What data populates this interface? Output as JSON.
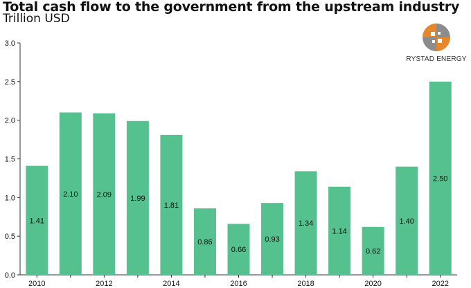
{
  "header": {
    "title": "Total cash flow to the government from the upstream industry",
    "subtitle": "Trillion USD"
  },
  "logo": {
    "text": "RYSTAD ENERGY",
    "icon": "rystad-globe-logo",
    "colors": [
      "#e8862a",
      "#8c8c8c",
      "#ffffff"
    ]
  },
  "chart_data": {
    "type": "bar",
    "categories": [
      "2010",
      "2011",
      "2012",
      "2013",
      "2014",
      "2015",
      "2016",
      "2017",
      "2018",
      "2019",
      "2020",
      "2021",
      "2022"
    ],
    "tick_labels": [
      "2010",
      "",
      "2012",
      "",
      "2014",
      "",
      "2016",
      "",
      "2018",
      "",
      "2020",
      "",
      "2022"
    ],
    "values": [
      1.41,
      2.1,
      2.09,
      1.99,
      1.81,
      0.86,
      0.66,
      0.93,
      1.34,
      1.14,
      0.62,
      1.4,
      2.5
    ],
    "value_labels": [
      "1.41",
      "2.10",
      "2.09",
      "1.99",
      "1.81",
      "0.86",
      "0.66",
      "0.93",
      "1.34",
      "1.14",
      "0.62",
      "1.40",
      "2.50"
    ],
    "y_ticks": [
      "0.0",
      "0.5",
      "1.0",
      "1.5",
      "2.0",
      "2.5",
      "3.0"
    ],
    "ylim": [
      0,
      3.0
    ],
    "bar_color": "#55c18e",
    "grid": false,
    "legend": false
  }
}
